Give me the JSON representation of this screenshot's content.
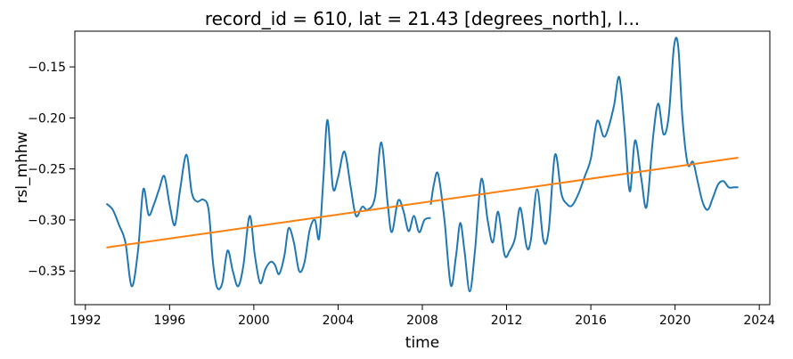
{
  "chart_data": {
    "type": "line",
    "title": "record_id = 610, lat = 21.43 [degrees_north], l...",
    "xlabel": "time",
    "ylabel": "rsl_mhhw",
    "xlim": [
      1991.5,
      2024.5
    ],
    "ylim": [
      -0.383,
      -0.115
    ],
    "xticks": [
      1992,
      1996,
      2000,
      2004,
      2008,
      2012,
      2016,
      2020,
      2024
    ],
    "yticks": [
      -0.35,
      -0.3,
      -0.25,
      -0.2,
      -0.15
    ],
    "ytick_labels": [
      "−0.35",
      "−0.30",
      "−0.25",
      "−0.20",
      "−0.15"
    ],
    "grid": false,
    "series": [
      {
        "color": "#1f77b4",
        "segments": [
          {
            "x": [
              1993.0,
              1993.3,
              1993.6,
              1993.9,
              1994.2,
              1994.5,
              1994.75,
              1995.0,
              1995.25,
              1995.5,
              1995.75,
              1996.0,
              1996.25,
              1996.5,
              1996.8,
              1997.05,
              1997.3,
              1997.6,
              1997.85,
              1998.05,
              1998.25,
              1998.5,
              1998.75,
              1999.0,
              1999.25,
              1999.5,
              1999.8,
              2000.05,
              2000.3,
              2000.55,
              2000.8,
              2001.0,
              2001.2,
              2001.45,
              2001.65,
              2001.9,
              2002.15,
              2002.4,
              2002.65,
              2002.9,
              2003.1,
              2003.3,
              2003.5,
              2003.75,
              2004.0,
              2004.3,
              2004.6,
              2004.85,
              2005.15,
              2005.4,
              2005.75,
              2006.05,
              2006.35,
              2006.55,
              2006.85,
              2007.1,
              2007.35,
              2007.6,
              2007.85,
              2008.1,
              2008.4
            ],
            "y": [
              -0.284,
              -0.29,
              -0.305,
              -0.322,
              -0.365,
              -0.33,
              -0.27,
              -0.295,
              -0.285,
              -0.27,
              -0.257,
              -0.285,
              -0.305,
              -0.27,
              -0.236,
              -0.273,
              -0.282,
              -0.28,
              -0.29,
              -0.34,
              -0.366,
              -0.362,
              -0.33,
              -0.35,
              -0.365,
              -0.345,
              -0.296,
              -0.335,
              -0.362,
              -0.348,
              -0.341,
              -0.344,
              -0.353,
              -0.335,
              -0.308,
              -0.322,
              -0.35,
              -0.342,
              -0.31,
              -0.3,
              -0.318,
              -0.26,
              -0.202,
              -0.268,
              -0.258,
              -0.233,
              -0.268,
              -0.296,
              -0.287,
              -0.29,
              -0.278,
              -0.224,
              -0.283,
              -0.312,
              -0.281,
              -0.291,
              -0.311,
              -0.296,
              -0.312,
              -0.3,
              -0.298
            ]
          },
          {
            "x": [
              2008.4,
              2008.55,
              2008.75,
              2009.05,
              2009.35,
              2009.6,
              2009.8,
              2010.0,
              2010.25,
              2010.5,
              2010.8,
              2011.1,
              2011.35,
              2011.6,
              2011.9,
              2012.15,
              2012.4,
              2012.65,
              2012.95,
              2013.15,
              2013.45,
              2013.75,
              2014.0,
              2014.3,
              2014.6,
              2014.85,
              2015.1,
              2015.4,
              2015.7,
              2016.0,
              2016.3,
              2016.6,
              2016.8,
              2017.1,
              2017.35,
              2017.6,
              2017.85,
              2018.1,
              2018.4,
              2018.65,
              2018.95,
              2019.2,
              2019.45,
              2019.7,
              2019.95,
              2020.15,
              2020.35,
              2020.6,
              2020.85,
              2021.05,
              2021.3,
              2021.55,
              2021.8,
              2022.05,
              2022.3,
              2022.55,
              2022.8,
              2023.0
            ],
            "y": [
              -0.285,
              -0.265,
              -0.255,
              -0.3,
              -0.364,
              -0.335,
              -0.303,
              -0.33,
              -0.37,
              -0.33,
              -0.26,
              -0.3,
              -0.322,
              -0.292,
              -0.334,
              -0.33,
              -0.318,
              -0.288,
              -0.326,
              -0.32,
              -0.27,
              -0.32,
              -0.31,
              -0.236,
              -0.274,
              -0.284,
              -0.286,
              -0.275,
              -0.258,
              -0.24,
              -0.203,
              -0.218,
              -0.212,
              -0.188,
              -0.16,
              -0.21,
              -0.272,
              -0.222,
              -0.26,
              -0.287,
              -0.22,
              -0.186,
              -0.216,
              -0.198,
              -0.13,
              -0.13,
              -0.2,
              -0.245,
              -0.243,
              -0.26,
              -0.282,
              -0.29,
              -0.278,
              -0.265,
              -0.262,
              -0.268,
              -0.268,
              -0.268
            ]
          }
        ]
      },
      {
        "color": "#ff7f0e",
        "x": [
          1993.0,
          2023.0
        ],
        "y": [
          -0.327,
          -0.239
        ]
      }
    ]
  }
}
